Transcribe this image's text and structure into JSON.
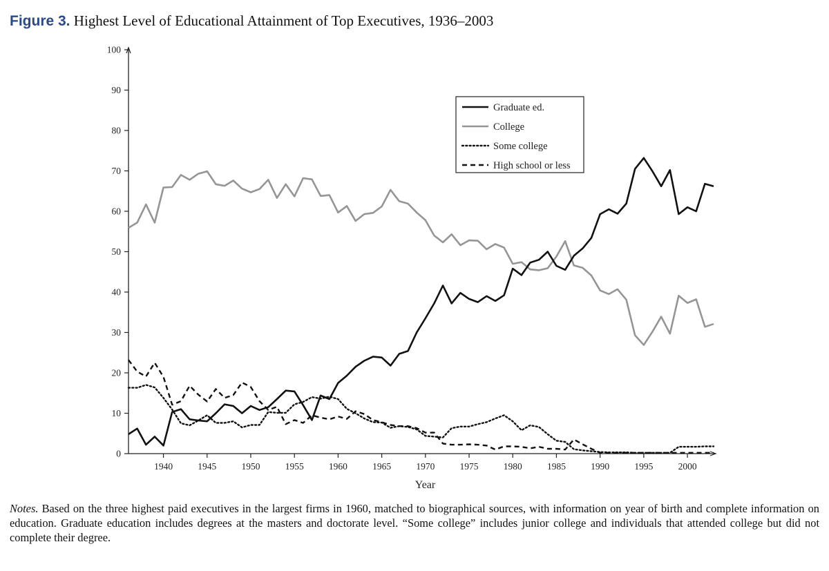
{
  "figure": {
    "label": "Figure 3.",
    "title": "Highest Level of Educational Attainment of Top Executives, 1936–2003"
  },
  "notes": {
    "label": "Notes.",
    "text": "Based on the three highest paid executives in the largest firms in 1960, matched to biographical sources, with information on year of birth and complete information on education. Graduate education includes degrees at the masters and doctorate level. “Some college” includes junior college and individuals that attended college but did not complete their degree."
  },
  "chart_data": {
    "type": "line",
    "title": "Highest Level of Educational Attainment of Top Executives, 1936–2003",
    "xlabel": "Year",
    "ylabel": "",
    "xlim": [
      1936,
      2003
    ],
    "ylim": [
      0,
      100
    ],
    "x_ticks": [
      1940,
      1945,
      1950,
      1955,
      1960,
      1965,
      1970,
      1975,
      1980,
      1985,
      1990,
      1995,
      2000
    ],
    "y_ticks": [
      0,
      10,
      20,
      30,
      40,
      50,
      60,
      70,
      80,
      90,
      100
    ],
    "grid": false,
    "legend": "top-right",
    "x": [
      1936,
      1937,
      1938,
      1939,
      1940,
      1941,
      1942,
      1943,
      1944,
      1945,
      1946,
      1947,
      1948,
      1949,
      1950,
      1951,
      1952,
      1953,
      1954,
      1955,
      1956,
      1957,
      1958,
      1959,
      1960,
      1961,
      1962,
      1963,
      1964,
      1965,
      1966,
      1967,
      1968,
      1969,
      1970,
      1971,
      1972,
      1973,
      1974,
      1975,
      1976,
      1977,
      1978,
      1979,
      1980,
      1981,
      1982,
      1983,
      1984,
      1985,
      1986,
      1987,
      1988,
      1989,
      1990,
      1991,
      1992,
      1993,
      1994,
      1995,
      1996,
      1997,
      1998,
      1999,
      2000,
      2001,
      2002,
      2003
    ],
    "series": [
      {
        "name": "Graduate ed.",
        "style": "solid-black",
        "values": [
          4.8,
          6.2,
          2.2,
          4.2,
          2.0,
          10.3,
          11.0,
          8.5,
          8.2,
          8.0,
          10.0,
          12.2,
          11.8,
          10.0,
          11.8,
          10.8,
          11.5,
          13.5,
          15.6,
          15.4,
          12.0,
          8.3,
          14.4,
          13.5,
          17.5,
          19.3,
          21.5,
          23.0,
          24.0,
          23.8,
          21.8,
          24.7,
          25.4,
          30.0,
          33.5,
          37.2,
          41.6,
          37.2,
          39.8,
          38.3,
          37.5,
          39.0,
          37.8,
          39.2,
          45.8,
          44.2,
          47.3,
          48.0,
          50.0,
          46.5,
          45.5,
          49.0,
          50.8,
          53.4,
          59.3,
          60.5,
          59.4,
          61.9,
          70.5,
          73.2,
          69.9,
          66.2,
          70.2,
          59.3,
          61.0,
          60.0,
          66.8,
          66.2
        ]
      },
      {
        "name": "College",
        "style": "solid-gray",
        "values": [
          55.9,
          57.2,
          61.7,
          57.2,
          65.9,
          66.0,
          69.0,
          67.8,
          69.3,
          69.9,
          66.7,
          66.3,
          67.6,
          65.6,
          64.7,
          65.5,
          67.8,
          63.3,
          66.7,
          63.7,
          68.2,
          67.9,
          63.8,
          64.0,
          59.7,
          61.3,
          57.6,
          59.3,
          59.6,
          61.2,
          65.3,
          62.5,
          61.9,
          59.7,
          57.8,
          54.0,
          52.3,
          54.3,
          51.6,
          52.8,
          52.7,
          50.6,
          51.9,
          51.0,
          47.0,
          47.4,
          45.6,
          45.4,
          45.9,
          48.8,
          52.6,
          46.6,
          46.0,
          44.1,
          40.4,
          39.5,
          40.7,
          38.1,
          29.3,
          26.9,
          30.2,
          33.9,
          29.7,
          39.1,
          37.3,
          38.2,
          31.4,
          32.1
        ]
      },
      {
        "name": "Some college",
        "style": "dotted",
        "values": [
          16.3,
          16.3,
          17.0,
          16.4,
          13.8,
          10.9,
          7.5,
          7.0,
          8.2,
          9.5,
          7.6,
          7.6,
          8.0,
          6.5,
          7.1,
          7.1,
          10.3,
          10.1,
          10.1,
          12.2,
          12.8,
          14.0,
          13.6,
          14.1,
          13.5,
          11.1,
          10.0,
          8.7,
          7.8,
          7.7,
          6.4,
          6.8,
          6.6,
          6.0,
          4.4,
          4.2,
          4.0,
          6.3,
          6.7,
          6.7,
          7.3,
          7.8,
          8.7,
          9.5,
          8.0,
          5.8,
          7.0,
          6.6,
          4.8,
          3.2,
          2.9,
          1.1,
          0.8,
          0.6,
          0.4,
          0.3,
          0.3,
          0.3,
          0.2,
          0.2,
          0.2,
          0.2,
          0.2,
          1.7,
          1.7,
          1.7,
          1.8,
          1.8
        ]
      },
      {
        "name": "High school or less",
        "style": "dashed",
        "values": [
          23.2,
          20.3,
          19.1,
          22.5,
          19.0,
          12.1,
          13.0,
          16.8,
          14.6,
          12.9,
          16.0,
          13.8,
          14.5,
          17.6,
          16.5,
          13.0,
          10.8,
          11.6,
          7.3,
          8.3,
          7.6,
          9.5,
          8.9,
          8.5,
          9.2,
          8.6,
          10.5,
          9.8,
          8.3,
          7.8,
          7.1,
          6.8,
          6.8,
          6.3,
          5.2,
          5.2,
          2.5,
          2.2,
          2.2,
          2.3,
          2.2,
          2.0,
          1.0,
          1.8,
          1.8,
          1.7,
          1.3,
          1.7,
          1.2,
          1.2,
          1.0,
          3.5,
          2.3,
          1.2,
          0.2,
          0.2,
          0.2,
          0.2,
          0.2,
          0.2,
          0.2,
          0.2,
          0.2,
          0.2,
          0.2,
          0.2,
          0.2,
          0.2
        ]
      }
    ]
  }
}
